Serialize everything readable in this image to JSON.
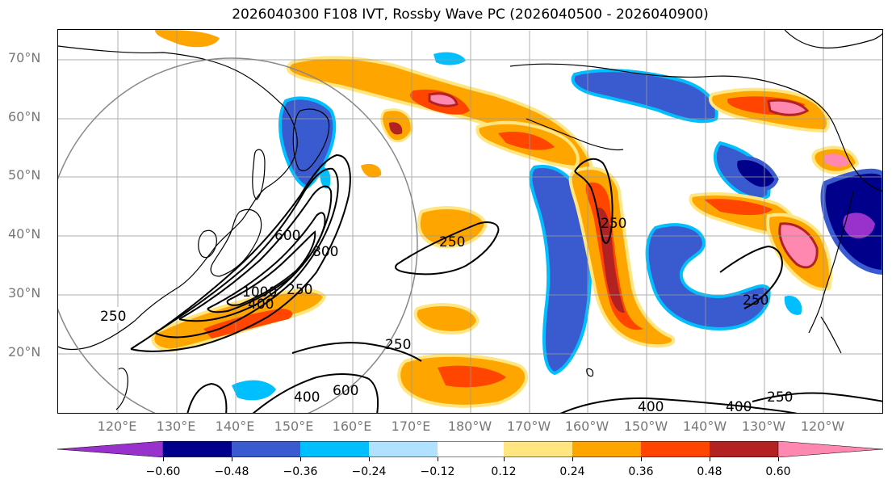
{
  "title": "2026040300 F108 IVT, Rossby Wave PC (2026040500 - 2026040900)",
  "lat_labels": [
    "70°N",
    "60°N",
    "50°N",
    "40°N",
    "30°N",
    "20°N"
  ],
  "lon_labels": [
    "120°E",
    "130°E",
    "140°E",
    "150°E",
    "160°E",
    "170°E",
    "180°W",
    "170°W",
    "160°W",
    "150°W",
    "140°W",
    "130°W",
    "120°W"
  ],
  "contour_labels": [
    "250",
    "400",
    "600",
    "800",
    "1000",
    "250",
    "400",
    "600",
    "250",
    "250",
    "250",
    "400",
    "400",
    "250",
    "250"
  ],
  "colorbar": {
    "ticks": [
      "−0.60",
      "−0.48",
      "−0.36",
      "−0.24",
      "−0.12",
      "0.12",
      "0.24",
      "0.36",
      "0.48",
      "0.60"
    ],
    "colors": [
      "#9932cc",
      "#00008b",
      "#3a5bd0",
      "#00bfff",
      "#b0e2ff",
      "#ffffff",
      "#ffe680",
      "#ffa500",
      "#ff4500",
      "#b22222",
      "#ff88b0"
    ]
  },
  "colors": {
    "neg_strong": "#00008b",
    "neg_mid": "#3a5bd0",
    "neg_light": "#00bfff",
    "neg_pale": "#b0e2ff",
    "pos_pale": "#ffe680",
    "pos_mid": "#ffa500",
    "pos_strong": "#ff4500",
    "pos_max": "#b22222",
    "pos_extreme": "#ff88b0"
  }
}
